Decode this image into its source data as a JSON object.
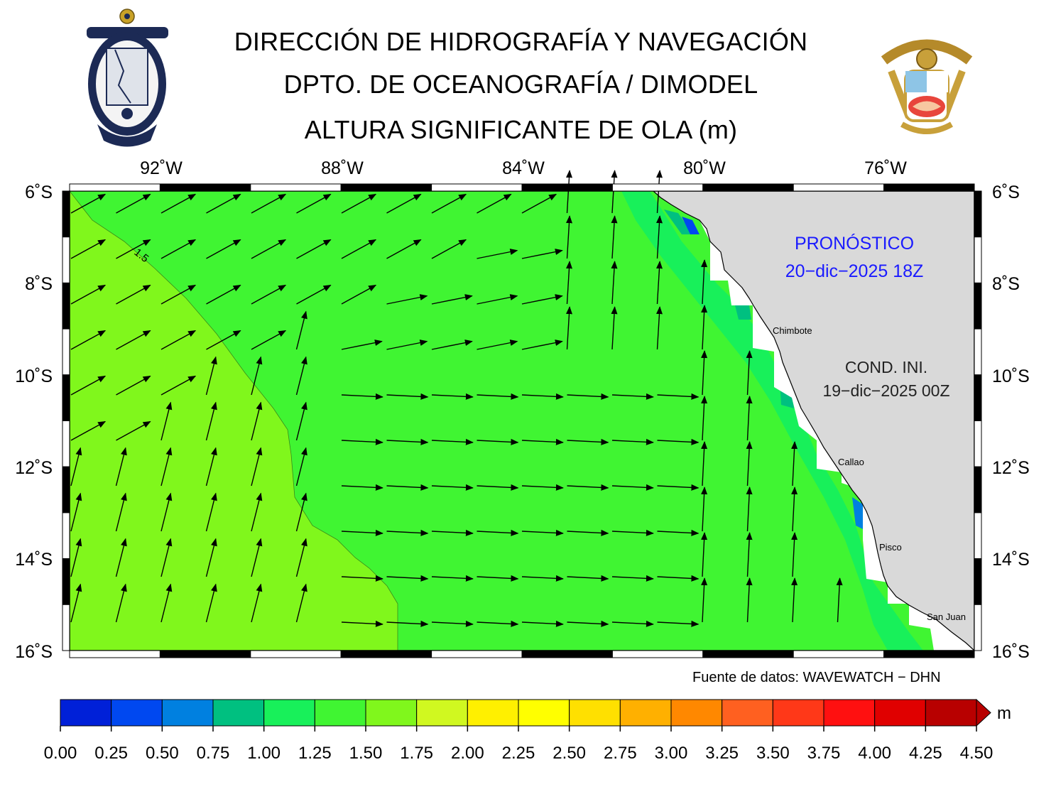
{
  "header": {
    "title_line1": "DIRECCIÓN DE HIDROGRAFÍA Y NAVEGACIÓN",
    "title_line2": "DPTO. DE OCEANOGRAFÍA / DIMODEL",
    "title_line3": "ALTURA SIGNIFICANTE DE OLA (m)"
  },
  "logos": {
    "left": "DIRECCIÓN DE HIDROGRAFÍA Y NAVEGACIÓN",
    "left_top": "MARINA DE GUERRA DEL PERÚ",
    "right": "MARINA DE GUERRA DEL PERÚ"
  },
  "map": {
    "lon_labels": [
      "92˚W",
      "88˚W",
      "84˚W",
      "80˚W",
      "76˚W"
    ],
    "lat_labels": [
      "6˚S",
      "8˚S",
      "10˚S",
      "12˚S",
      "14˚S",
      "16˚S"
    ],
    "contour_label": "1.5",
    "cities": [
      "Chimbote",
      "Callao",
      "Pisco",
      "San Juan"
    ],
    "forecast_label": "PRONÓSTICO",
    "forecast_time": "20−dic−2025 18Z",
    "init_label": "COND. INI.",
    "init_time": "19−dic−2025 00Z",
    "land_color": "#d9d9d9",
    "wave_colors": {
      "0.75-1.00": "#00c080",
      "1.00-1.25": "#18f05a",
      "1.25-1.50": "#40f532",
      "1.50-1.75": "#80f71c"
    },
    "arrow_color": "#000000"
  },
  "source": "Fuente de datos: WAVEWATCH − DHN",
  "colorbar": {
    "unit": "m",
    "ticks": [
      "0.00",
      "0.25",
      "0.50",
      "0.75",
      "1.00",
      "1.25",
      "1.50",
      "1.75",
      "2.00",
      "2.25",
      "2.50",
      "2.75",
      "3.00",
      "3.25",
      "3.50",
      "3.75",
      "4.00",
      "4.25",
      "4.50"
    ],
    "colors": [
      "#0020d8",
      "#0048f0",
      "#0080e0",
      "#00c080",
      "#18f05a",
      "#40f532",
      "#80f71c",
      "#d0f820",
      "#fff000",
      "#ffff00",
      "#ffe000",
      "#ffb000",
      "#ff8800",
      "#ff6020",
      "#ff3818",
      "#ff1010",
      "#e00000",
      "#b80000"
    ]
  }
}
